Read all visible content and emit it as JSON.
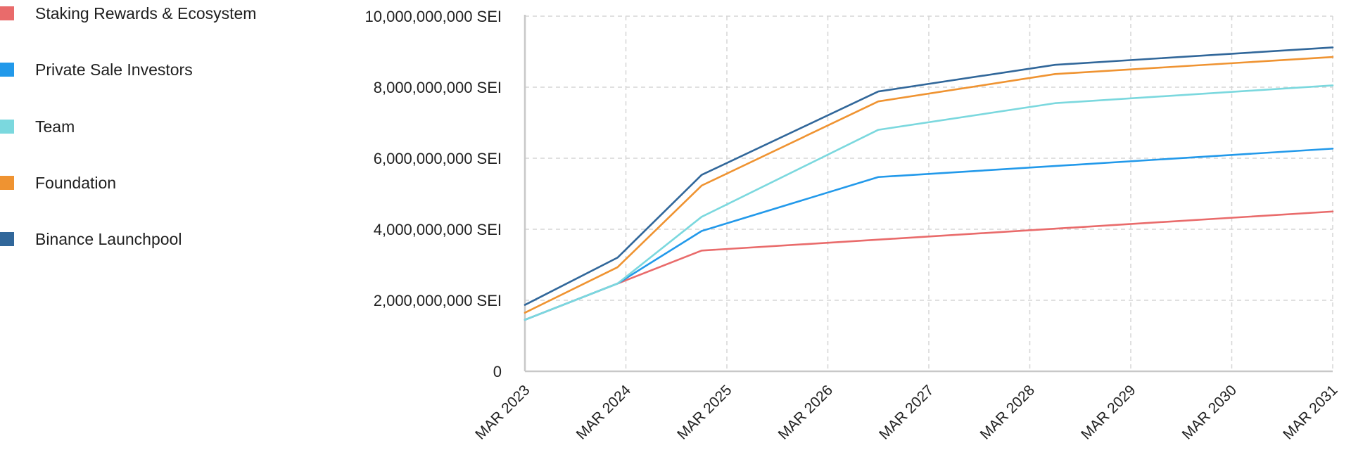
{
  "chart_data": {
    "type": "line",
    "title": "",
    "xlabel": "",
    "ylabel": "",
    "categories": [
      "MAR 2023",
      "MAR 2024",
      "MAR 2025",
      "MAR 2026",
      "MAR 2027",
      "MAR 2028",
      "MAR 2029",
      "MAR 2030",
      "MAR 2031"
    ],
    "y_ticks": [
      "0",
      "2,000,000,000 SEI",
      "4,000,000,000 SEI",
      "6,000,000,000 SEI",
      "8,000,000,000 SEI",
      "10,000,000,000 SEI"
    ],
    "ylim": [
      0,
      10000000000
    ],
    "y_unit": "SEI",
    "grid": true,
    "legend_position": "left",
    "series": [
      {
        "name": "Staking Rewards & Ecosystem",
        "color": "#E96B6B",
        "points": [
          [
            "2023-03",
            1450000000
          ],
          [
            "2024-02",
            2470000000
          ],
          [
            "2024-12",
            3400000000
          ],
          [
            "2031-03",
            4500000000
          ]
        ]
      },
      {
        "name": "Private Sale Investors",
        "color": "#2299EA",
        "points": [
          [
            "2023-03",
            1450000000
          ],
          [
            "2024-02",
            2470000000
          ],
          [
            "2024-12",
            3950000000
          ],
          [
            "2026-09",
            5470000000
          ],
          [
            "2031-03",
            6270000000
          ]
        ]
      },
      {
        "name": "Team",
        "color": "#7BD8DE",
        "points": [
          [
            "2023-03",
            1450000000
          ],
          [
            "2024-02",
            2470000000
          ],
          [
            "2024-12",
            4350000000
          ],
          [
            "2026-09",
            6800000000
          ],
          [
            "2028-06",
            7550000000
          ],
          [
            "2031-03",
            8050000000
          ]
        ]
      },
      {
        "name": "Foundation",
        "color": "#EF9331",
        "points": [
          [
            "2023-03",
            1650000000
          ],
          [
            "2024-02",
            2930000000
          ],
          [
            "2024-12",
            5230000000
          ],
          [
            "2026-09",
            7600000000
          ],
          [
            "2028-06",
            8370000000
          ],
          [
            "2031-03",
            8850000000
          ]
        ]
      },
      {
        "name": "Binance Launchpool",
        "color": "#31679A",
        "points": [
          [
            "2023-03",
            1870000000
          ],
          [
            "2024-02",
            3200000000
          ],
          [
            "2024-12",
            5530000000
          ],
          [
            "2026-09",
            7880000000
          ],
          [
            "2028-06",
            8630000000
          ],
          [
            "2031-03",
            9120000000
          ]
        ]
      }
    ]
  }
}
